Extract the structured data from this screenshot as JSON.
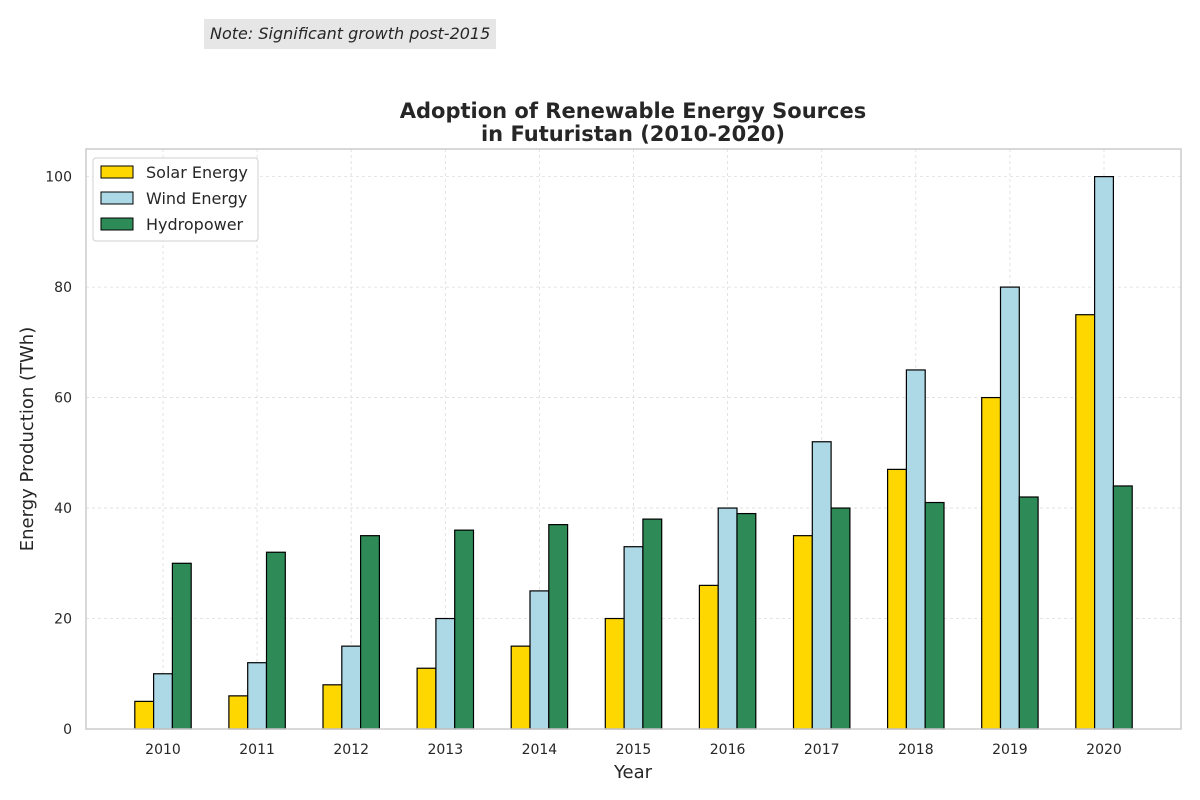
{
  "annotation": "Note: Significant growth post-2015",
  "chart_data": {
    "type": "bar",
    "title_lines": [
      "Adoption of Renewable Energy Sources",
      "in Futuristan (2010-2020)"
    ],
    "xlabel": "Year",
    "ylabel": "Energy Production (TWh)",
    "categories": [
      "2010",
      "2011",
      "2012",
      "2013",
      "2014",
      "2015",
      "2016",
      "2017",
      "2018",
      "2019",
      "2020"
    ],
    "series": [
      {
        "name": "Solar Energy",
        "color": "#FFD700",
        "values": [
          5,
          6,
          8,
          11,
          15,
          20,
          26,
          35,
          47,
          60,
          75
        ]
      },
      {
        "name": "Wind Energy",
        "color": "#ADD8E6",
        "values": [
          10,
          12,
          15,
          20,
          25,
          33,
          40,
          52,
          65,
          80,
          100
        ]
      },
      {
        "name": "Hydropower",
        "color": "#2E8B57",
        "values": [
          30,
          32,
          35,
          36,
          37,
          38,
          39,
          40,
          41,
          42,
          44
        ]
      }
    ],
    "ylim": [
      0,
      105
    ],
    "yticks": [
      0,
      20,
      40,
      60,
      80,
      100
    ],
    "grid": true,
    "legend_position": "top-left"
  }
}
